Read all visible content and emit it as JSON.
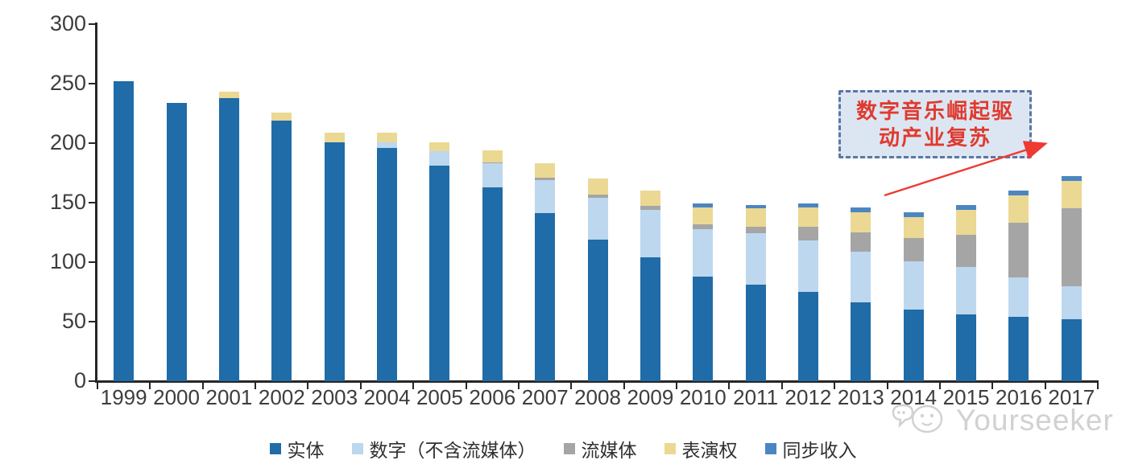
{
  "chart_data": {
    "type": "bar",
    "stacked": true,
    "title": "",
    "xlabel": "",
    "ylabel": "",
    "ylim": [
      0,
      300
    ],
    "yticks": [
      0,
      50,
      100,
      150,
      200,
      250,
      300
    ],
    "grid": false,
    "legend_position": "bottom",
    "categories": [
      "1999",
      "2000",
      "2001",
      "2002",
      "2003",
      "2004",
      "2005",
      "2006",
      "2007",
      "2008",
      "2009",
      "2010",
      "2011",
      "2012",
      "2013",
      "2014",
      "2015",
      "2016",
      "2017"
    ],
    "series": [
      {
        "name": "实体",
        "color": "#1F6CA8",
        "values": [
          252,
          234,
          238,
          219,
          201,
          196,
          181,
          163,
          141,
          119,
          104,
          88,
          81,
          75,
          66,
          60,
          56,
          54,
          52
        ]
      },
      {
        "name": "数字（不含流媒体）",
        "color": "#BDD7EE",
        "values": [
          0,
          0,
          0,
          0,
          0,
          5,
          12,
          20,
          28,
          35,
          40,
          40,
          43,
          43,
          43,
          41,
          40,
          33,
          28
        ]
      },
      {
        "name": "流媒体",
        "color": "#A5A5A5",
        "values": [
          0,
          0,
          0,
          0,
          0,
          0,
          0,
          1,
          2,
          3,
          3,
          4,
          6,
          12,
          16,
          19,
          27,
          46,
          65
        ]
      },
      {
        "name": "表演权",
        "color": "#EBD893",
        "values": [
          0,
          0,
          5,
          7,
          8,
          8,
          8,
          10,
          12,
          13,
          13,
          14,
          15,
          16,
          17,
          18,
          21,
          23,
          23
        ]
      },
      {
        "name": "同步收入",
        "color": "#4B86C2",
        "values": [
          0,
          0,
          0,
          0,
          0,
          0,
          0,
          0,
          0,
          0,
          0,
          3,
          3,
          3,
          4,
          4,
          4,
          4,
          4
        ]
      }
    ],
    "annotation": {
      "text": "数字音乐崛起驱动产业复苏",
      "line1": "数字音乐崛起驱",
      "line2": "动产业复苏",
      "text_color": "#e03a2f",
      "box_fill": "#dce6f2",
      "box_border": "#5b76a3",
      "arrow_color": "#ed3b32"
    }
  },
  "watermark": {
    "text": "Yourseeker"
  },
  "axis": {
    "line_color": "#262626",
    "label_color": "#3d3d3d"
  }
}
